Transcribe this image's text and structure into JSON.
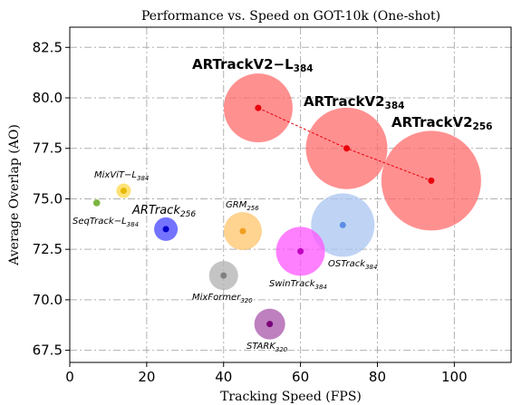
{
  "chart_data": {
    "type": "bubble",
    "title": "Performance vs. Speed on GOT-10k (One-shot)",
    "x_label": "Tracking Speed (FPS)",
    "y_label": "Average Overlap (AO)",
    "xlim": [
      0,
      115
    ],
    "ylim": [
      66.9,
      83.5
    ],
    "xticks": [
      0,
      20,
      40,
      60,
      80,
      100
    ],
    "yticks": [
      67.5,
      {
        "value": 70,
        "label": "70.0"
      },
      72.5,
      {
        "value": 75,
        "label": "75.0"
      },
      77.5,
      {
        "value": 80,
        "label": "80.0"
      },
      82.5
    ],
    "grid": true,
    "dashed_line_color": "#e8000b",
    "points": [
      {
        "name": "ARTrackV2−L",
        "sub": "384",
        "x": 49,
        "y": 79.5,
        "size": 38,
        "color": "#ff6b6b",
        "dot_color": "#e8000b",
        "linked": true
      },
      {
        "name": "ARTrackV2",
        "sub": "384",
        "x": 72,
        "y": 77.5,
        "size": 45,
        "color": "#ff6b6b",
        "dot_color": "#e8000b",
        "linked": true
      },
      {
        "name": "ARTrackV2",
        "sub": "256",
        "x": 94,
        "y": 75.9,
        "size": 55,
        "color": "#ff6b6b",
        "dot_color": "#e8000b",
        "linked": true
      },
      {
        "name": "MixViT−L",
        "sub": "384",
        "x": 14,
        "y": 75.4,
        "size": 8,
        "color": "#ffd84a",
        "dot_color": "#e8b800"
      },
      {
        "name": "SeqTrack−L",
        "sub": "384",
        "x": 7,
        "y": 74.8,
        "size": 4,
        "color": "#8bc34a",
        "dot_color": "#7cb342"
      },
      {
        "name": "ARTrack",
        "sub": "256",
        "x": 25,
        "y": 73.5,
        "size": 13,
        "color": "#4444ff",
        "dot_color": "#0000cc"
      },
      {
        "name": "GRM",
        "sub": "256",
        "x": 45,
        "y": 73.4,
        "size": 21,
        "color": "#ffc46b",
        "dot_color": "#f0a020"
      },
      {
        "name": "OSTrack",
        "sub": "384",
        "x": 71,
        "y": 73.7,
        "size": 35,
        "color": "#a9c4f0",
        "dot_color": "#5a8ee6"
      },
      {
        "name": "SwinTrack",
        "sub": "384",
        "x": 60,
        "y": 72.4,
        "size": 27,
        "color": "#ff55ff",
        "dot_color": "#c000c0"
      },
      {
        "name": "MixFormer",
        "sub": "320",
        "x": 40,
        "y": 71.2,
        "size": 16,
        "color": "#b0b0b0",
        "dot_color": "#808080"
      },
      {
        "name": "STARK",
        "sub": "320",
        "x": 52,
        "y": 68.8,
        "size": 17,
        "color": "#a855a8",
        "dot_color": "#7a007a"
      }
    ]
  }
}
